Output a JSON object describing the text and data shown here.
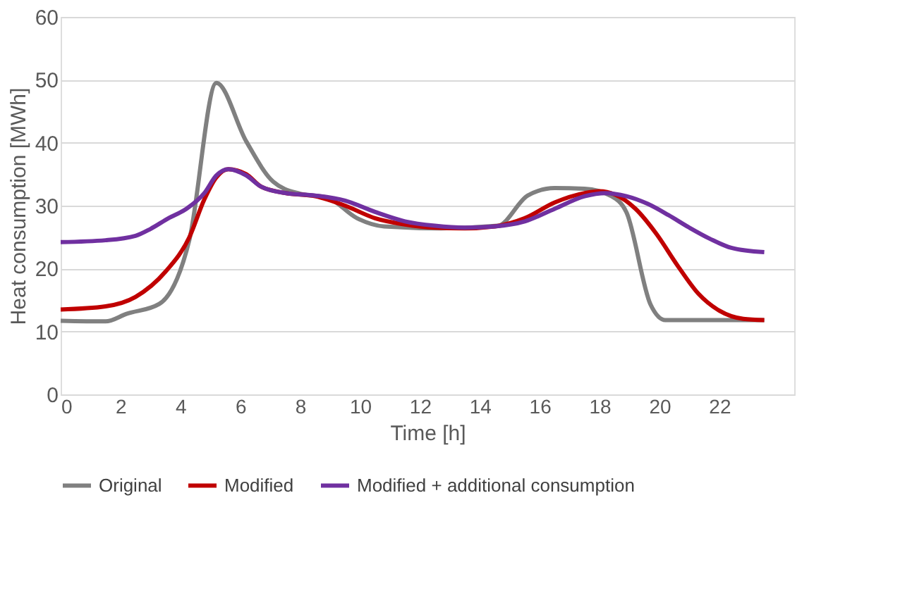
{
  "chart_data": {
    "type": "line",
    "xlabel": "Time [h]",
    "ylabel": "Heat consumption [MWh]",
    "xlim": [
      0,
      24.5
    ],
    "xticks": [
      0,
      2,
      4,
      6,
      8,
      10,
      12,
      14,
      16,
      18,
      20,
      22
    ],
    "ylim": [
      0,
      60
    ],
    "yticks": [
      0,
      10,
      20,
      30,
      40,
      50,
      60
    ],
    "grid": "y",
    "legend": "bottom",
    "line_style": "solid",
    "marker": "none",
    "series": [
      {
        "name": "Original",
        "color": "#808080",
        "x": [
          0,
          1.5,
          2.2,
          3.3,
          4.3,
          5.2,
          6.2,
          7.1,
          8.0,
          8.9,
          9.9,
          10.8,
          12.7,
          14.6,
          15.6,
          16.5,
          17.5,
          18.4,
          18.9,
          19.7,
          20.2,
          23.5
        ],
        "values": [
          11.7,
          11.6,
          12.8,
          14.4,
          24.6,
          49.5,
          40.2,
          33.8,
          31.9,
          31.3,
          28,
          26.7,
          26.4,
          26.8,
          31.6,
          32.8,
          32.7,
          31.5,
          28.9,
          14.3,
          11.8,
          11.8
        ]
      },
      {
        "name": "Modified",
        "color": "#c00000",
        "x": [
          0,
          1.5,
          2.5,
          3.5,
          4.3,
          4.8,
          5.2,
          5.6,
          6.2,
          6.7,
          7.5,
          8.5,
          9.5,
          10.5,
          11.5,
          12.5,
          13.5,
          14.5,
          15.5,
          16.5,
          17.5,
          18,
          18.5,
          19.2,
          19.9,
          20.6,
          21.3,
          22,
          22.8,
          23.5
        ],
        "values": [
          13.5,
          14,
          15.5,
          19.5,
          25,
          31,
          34.5,
          35.8,
          35,
          33,
          32,
          31.5,
          30,
          28,
          27,
          26.5,
          26.4,
          26.7,
          28,
          30.5,
          32,
          32.3,
          31.8,
          29.5,
          25.5,
          20.5,
          16,
          13.3,
          12,
          11.8
        ]
      },
      {
        "name": "Modified + additional consumption",
        "color": "#7030a0",
        "x": [
          0,
          1.5,
          2.5,
          3,
          3.6,
          4.2,
          4.8,
          5.2,
          5.6,
          6.2,
          6.7,
          7.5,
          8.5,
          9.5,
          10.5,
          11.5,
          12.5,
          13.5,
          14.5,
          15.5,
          16.5,
          17.5,
          18.2,
          18.9,
          19.6,
          20.3,
          21,
          21.7,
          22.4,
          23.5
        ],
        "values": [
          24.2,
          24.5,
          25.2,
          26.3,
          28,
          29.5,
          32,
          34.8,
          35.8,
          34.8,
          33,
          32,
          31.6,
          30.8,
          29,
          27.5,
          26.8,
          26.5,
          26.7,
          27.5,
          29.5,
          31.5,
          32,
          31.5,
          30.3,
          28.5,
          26.5,
          24.7,
          23.3,
          22.6
        ]
      }
    ]
  }
}
